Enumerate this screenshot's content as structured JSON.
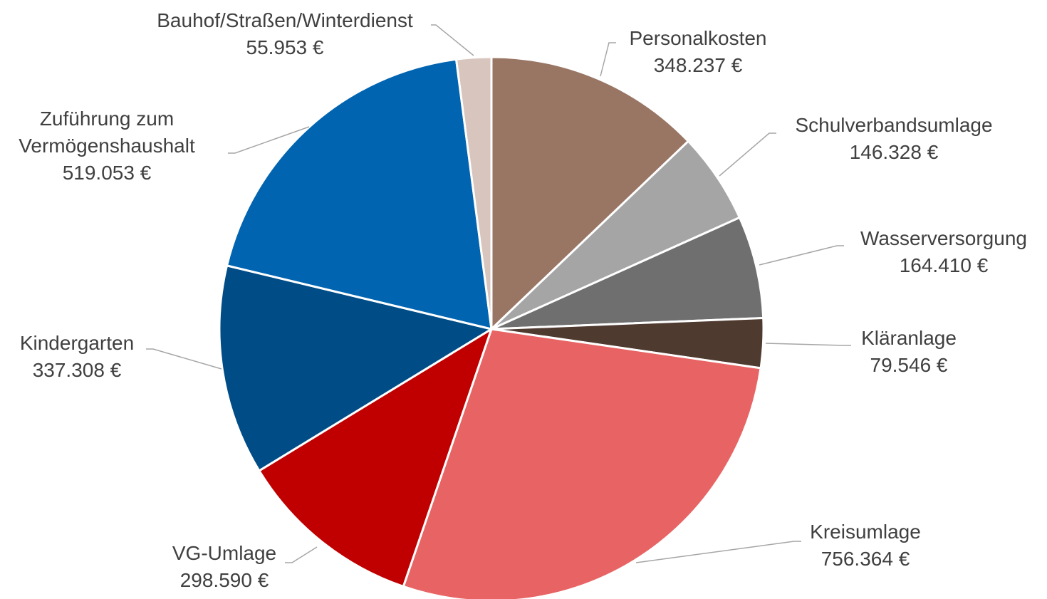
{
  "chart_data": {
    "type": "pie",
    "categories": [
      "Personalkosten",
      "Schulverbandsumlage",
      "Wasserversorgung",
      "Kläranlage",
      "Kreisumlage",
      "VG-Umlage",
      "Kindergarten",
      "Zuführung zum Vermögenshaushalt",
      "Bauhof/Straßen/Winterdienst"
    ],
    "values": [
      348237,
      146328,
      164410,
      79546,
      756364,
      298590,
      337308,
      519053,
      55953
    ],
    "value_labels": [
      "348.237 €",
      "146.328 €",
      "164.410 €",
      "79.546 €",
      "756.364 €",
      "298.590 €",
      "337.308 €",
      "519.053 €",
      "55.953 €"
    ],
    "colors": [
      "#997564",
      "#a5a5a5",
      "#6f6f6f",
      "#4f3a30",
      "#e86464",
      "#c00000",
      "#004c87",
      "#0064b1",
      "#d8c5be"
    ]
  }
}
